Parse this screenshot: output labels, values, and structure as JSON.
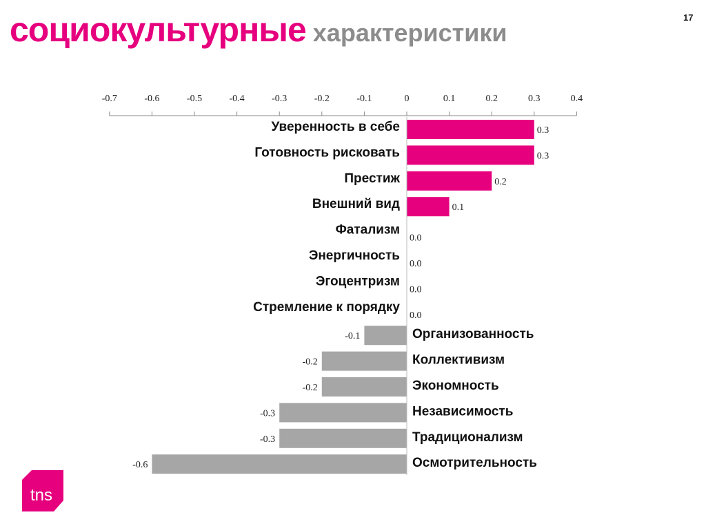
{
  "title": {
    "highlight": "социокультурные",
    "rest": "характеристики"
  },
  "page_number": "17",
  "logo_text": "tns",
  "colors": {
    "positive": "#e6007e",
    "negative": "#a6a6a6",
    "title_accent": "#e6007e",
    "title_gray": "#8c8c8c"
  },
  "chart_data": {
    "type": "bar",
    "orientation": "horizontal",
    "title": "",
    "xlabel": "",
    "ylabel": "",
    "xlim": [
      -0.7,
      0.4
    ],
    "ticks": [
      -0.7,
      -0.6,
      -0.5,
      -0.4,
      -0.3,
      -0.2,
      -0.1,
      0,
      0.1,
      0.2,
      0.3,
      0.4
    ],
    "tick_labels": [
      "-0.7",
      "-0.6",
      "-0.5",
      "-0.4",
      "-0.3",
      "-0.2",
      "-0.1",
      "0",
      "0.1",
      "0.2",
      "0.3",
      "0.4"
    ],
    "axis_position": "top",
    "grid": false,
    "categories": [
      "Уверенность в себе",
      "Готовность рисковать",
      "Престиж",
      "Внешний вид",
      "Фатализм",
      "Энергичность",
      "Эгоцентризм",
      "Стремление к порядку",
      "Организованность",
      "Коллективизм",
      "Экономность",
      "Независимость",
      "Традиционализм",
      "Осмотрительность"
    ],
    "values": [
      0.3,
      0.3,
      0.2,
      0.1,
      0.0,
      0.0,
      0.0,
      0.0,
      -0.1,
      -0.2,
      -0.2,
      -0.3,
      -0.3,
      -0.6
    ],
    "data_labels": [
      "0.3",
      "0.3",
      "0.2",
      "0.1",
      "0.0",
      "0.0",
      "0.0",
      "0.0",
      "-0.1",
      "-0.2",
      "-0.2",
      "-0.3",
      "-0.3",
      "-0.6"
    ]
  }
}
